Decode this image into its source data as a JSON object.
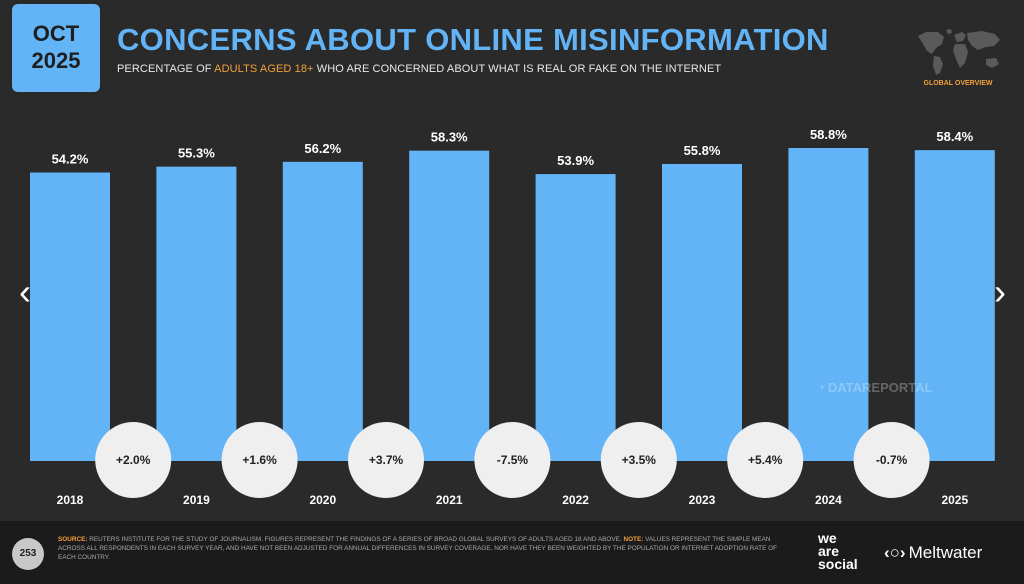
{
  "header": {
    "badge_month": "OCT",
    "badge_year": "2025",
    "title": "CONCERNS ABOUT ONLINE MISINFORMATION",
    "subtitle_pre": "PERCENTAGE OF ",
    "subtitle_highlight": "ADULTS AGED 18+",
    "subtitle_post": " WHO ARE CONCERNED ABOUT WHAT IS REAL OR FAKE ON THE INTERNET",
    "region_label": "GLOBAL OVERVIEW",
    "map_icon": "world-map-icon"
  },
  "navigation": {
    "prev_glyph": "‹",
    "next_glyph": "›"
  },
  "watermark": {
    "glyph": "◔",
    "text": "DATAREPORTAL"
  },
  "chart_data": {
    "type": "bar",
    "categories": [
      "2018",
      "2019",
      "2020",
      "2021",
      "2022",
      "2023",
      "2024",
      "2025"
    ],
    "values": [
      54.2,
      55.3,
      56.2,
      58.3,
      53.9,
      55.8,
      58.8,
      58.4
    ],
    "value_labels": [
      "54.2%",
      "55.3%",
      "56.2%",
      "58.3%",
      "53.9%",
      "55.8%",
      "58.8%",
      "58.4%"
    ],
    "changes": [
      "+2.0%",
      "+1.6%",
      "+3.7%",
      "-7.5%",
      "+3.5%",
      "+5.4%",
      "-0.7%"
    ],
    "title": "CONCERNS ABOUT ONLINE MISINFORMATION",
    "xlabel": "",
    "ylabel": "",
    "grid": false,
    "legend": "none",
    "bar_color": "#62b4f6",
    "background_color": "#2a2a2a"
  },
  "footer": {
    "page_number": "253",
    "source_label": "SOURCE:",
    "source_text": " REUTERS INSTITUTE FOR THE STUDY OF JOURNALISM. FIGURES REPRESENT THE FINDINGS OF A SERIES OF BROAD GLOBAL SURVEYS OF ADULTS AGED 18 AND ABOVE. ",
    "note_label": "NOTE:",
    "note_text": " VALUES REPRESENT THE SIMPLE MEAN ACROSS ALL RESPONDENTS IN EACH SURVEY YEAR, AND HAVE NOT BEEN ADJUSTED FOR ANNUAL DIFFERENCES IN SURVEY COVERAGE, NOR HAVE THEY BEEN WEIGHTED BY THE POPULATION OR INTERNET ADOPTION RATE OF EACH COUNTRY.",
    "brand_line1": "we",
    "brand_line2": "are",
    "brand_line3": "social",
    "partner_glyph": "‹○›",
    "partner_name": "Meltwater"
  },
  "colors": {
    "accent": "#62b4f6",
    "highlight": "#f2a03a",
    "background": "#2a2a2a",
    "footer": "#1b1b1b"
  }
}
